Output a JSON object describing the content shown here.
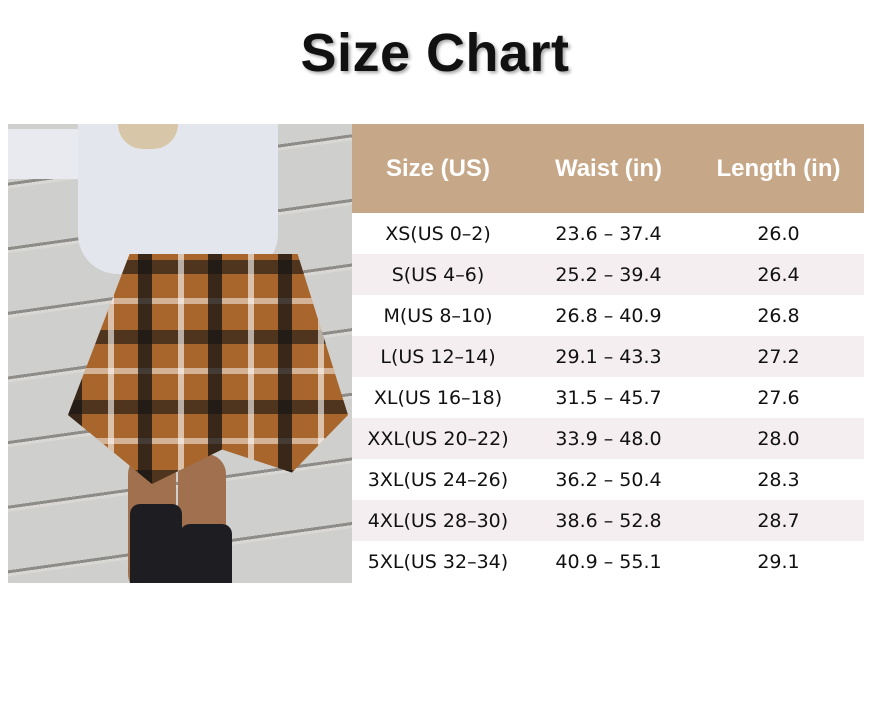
{
  "title": "Size Chart",
  "colors": {
    "header_bg": "#c6a888",
    "header_text": "#ffffff",
    "alt_row_bg": "#f4eef1"
  },
  "photo": {
    "description_icon": "product-photo-plaid-skirt"
  },
  "table": {
    "headers": [
      "Size (US)",
      "Waist (in)",
      "Length (in)"
    ],
    "rows": [
      [
        "XS(US 0–2)",
        "23.6 – 37.4",
        "26.0"
      ],
      [
        "S(US 4–6)",
        "25.2 – 39.4",
        "26.4"
      ],
      [
        "M(US 8–10)",
        "26.8 – 40.9",
        "26.8"
      ],
      [
        "L(US 12–14)",
        "29.1 – 43.3",
        "27.2"
      ],
      [
        "XL(US 16–18)",
        "31.5 – 45.7",
        "27.6"
      ],
      [
        "XXL(US 20–22)",
        "33.9 – 48.0",
        "28.0"
      ],
      [
        "3XL(US 24–26)",
        "36.2 – 50.4",
        "28.3"
      ],
      [
        "4XL(US 28–30)",
        "38.6 – 52.8",
        "28.7"
      ],
      [
        "5XL(US 32–34)",
        "40.9 – 55.1",
        "29.1"
      ]
    ]
  }
}
